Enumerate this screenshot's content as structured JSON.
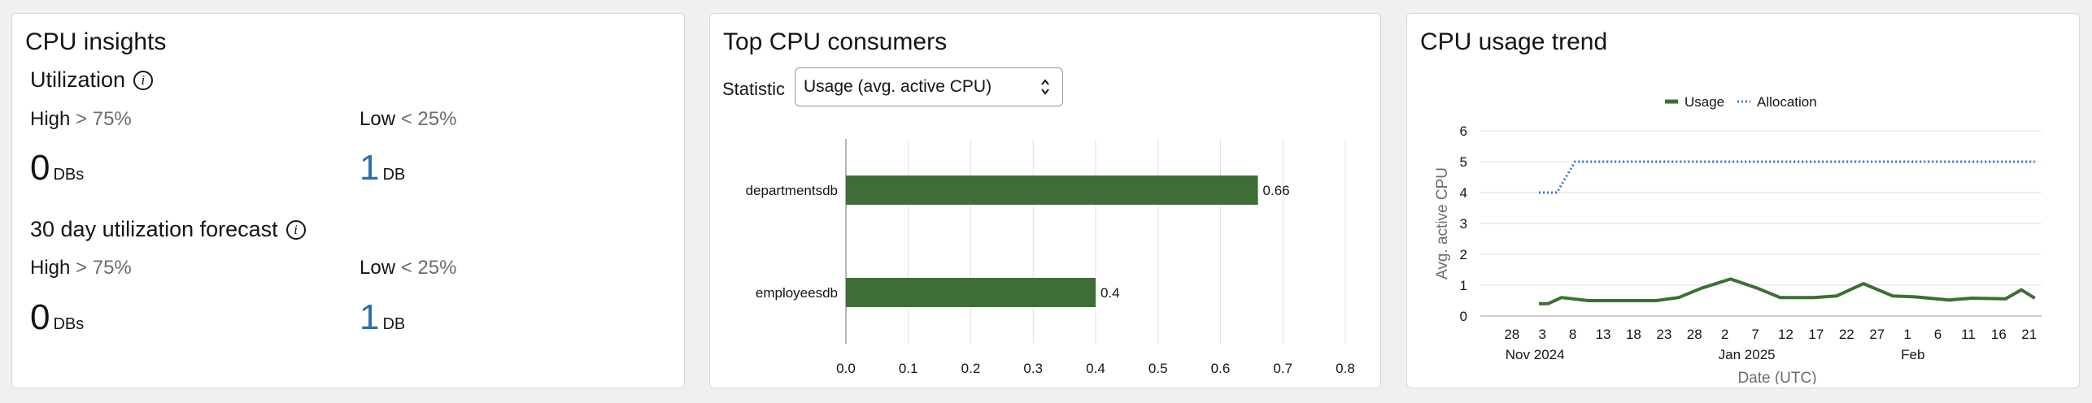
{
  "insights": {
    "title": "CPU insights",
    "utilization": {
      "title": "Utilization",
      "high_label": "High",
      "high_op": "> 75%",
      "low_label": "Low",
      "low_op": "< 25%",
      "high_count": "0",
      "high_unit": "DBs",
      "low_count": "1",
      "low_unit": "DB"
    },
    "forecast": {
      "title": "30 day utilization forecast",
      "high_label": "High",
      "high_op": "> 75%",
      "low_label": "Low",
      "low_op": "< 25%",
      "high_count": "0",
      "high_unit": "DBs",
      "low_count": "1",
      "low_unit": "DB"
    },
    "info_icon_glyph": "i"
  },
  "consumers": {
    "title": "Top CPU consumers",
    "statistic_label": "Statistic",
    "statistic_value": "Usage (avg. active CPU)"
  },
  "trend": {
    "title": "CPU usage trend"
  },
  "colors": {
    "usage": "#3d6e35",
    "allocation": "#2f7ad6",
    "accent_blue": "#2e6fa8"
  },
  "chart_data": [
    {
      "type": "bar",
      "orientation": "horizontal",
      "categories": [
        "departmentsdb",
        "employeesdb"
      ],
      "values": [
        0.66,
        0.4
      ],
      "value_labels": [
        "0.66",
        "0.4"
      ],
      "xlim": [
        0,
        0.8
      ],
      "ticks": [
        "0.0",
        "0.1",
        "0.2",
        "0.3",
        "0.4",
        "0.5",
        "0.6",
        "0.7",
        "0.8"
      ],
      "grid": true
    },
    {
      "type": "line",
      "xlabel": "Date (UTC)",
      "ylabel": "Avg. active CPU",
      "ylim": [
        0,
        6
      ],
      "yticks": [
        "0",
        "1",
        "2",
        "3",
        "4",
        "5",
        "6"
      ],
      "x_ticks": [
        {
          "label": "28",
          "sub": "Nov 2024"
        },
        {
          "label": "3",
          "sub": ""
        },
        {
          "label": "8",
          "sub": ""
        },
        {
          "label": "13",
          "sub": ""
        },
        {
          "label": "18",
          "sub": ""
        },
        {
          "label": "23",
          "sub": ""
        },
        {
          "label": "28",
          "sub": ""
        },
        {
          "label": "2",
          "sub": "Jan 2025"
        },
        {
          "label": "7",
          "sub": ""
        },
        {
          "label": "12",
          "sub": ""
        },
        {
          "label": "17",
          "sub": ""
        },
        {
          "label": "22",
          "sub": ""
        },
        {
          "label": "27",
          "sub": ""
        },
        {
          "label": "1",
          "sub": "Feb"
        },
        {
          "label": "6",
          "sub": ""
        },
        {
          "label": "11",
          "sub": ""
        },
        {
          "label": "16",
          "sub": ""
        },
        {
          "label": "21",
          "sub": ""
        }
      ],
      "legend": [
        "Usage",
        "Allocation"
      ],
      "legend_position": "top",
      "series": [
        {
          "name": "Usage",
          "style": "solid",
          "points": [
            [
              -10.2,
              0.4
            ],
            [
              -9.8,
              0.4
            ],
            [
              -9.2,
              0.6
            ],
            [
              -8,
              0.5
            ],
            [
              -6,
              0.5
            ],
            [
              -5,
              0.5
            ],
            [
              -4,
              0.6
            ],
            [
              -3,
              0.9
            ],
            [
              -1.7,
              1.2
            ],
            [
              -0.5,
              0.9
            ],
            [
              0.5,
              0.6
            ],
            [
              2,
              0.6
            ],
            [
              3,
              0.65
            ],
            [
              4.2,
              1.05
            ],
            [
              5.5,
              0.65
            ],
            [
              6.5,
              0.62
            ],
            [
              8,
              0.52
            ],
            [
              9,
              0.58
            ],
            [
              10.5,
              0.56
            ],
            [
              11.2,
              0.85
            ],
            [
              11.8,
              0.58
            ]
          ]
        },
        {
          "name": "Allocation",
          "style": "dotted",
          "points": [
            [
              -10.2,
              4
            ],
            [
              -9.4,
              4
            ],
            [
              -8.6,
              5
            ],
            [
              11.8,
              5
            ]
          ]
        }
      ]
    }
  ]
}
